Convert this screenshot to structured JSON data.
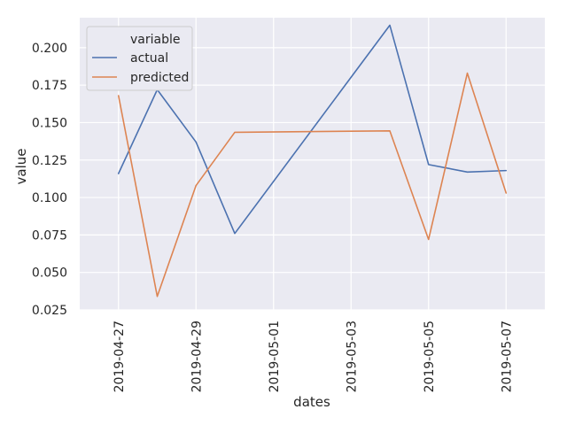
{
  "chart_data": {
    "type": "line",
    "title": "",
    "xlabel": "dates",
    "ylabel": "value",
    "x": [
      "2019-04-27",
      "2019-04-28",
      "2019-04-29",
      "2019-04-30",
      "2019-05-04",
      "2019-05-05",
      "2019-05-06",
      "2019-05-07"
    ],
    "xlim": [
      "2019-04-26",
      "2019-05-08"
    ],
    "xticks": [
      "2019-04-27",
      "2019-04-29",
      "2019-05-01",
      "2019-05-03",
      "2019-05-05",
      "2019-05-07"
    ],
    "ylim": [
      0.025,
      0.22
    ],
    "yticks": [
      "0.025",
      "0.050",
      "0.075",
      "0.100",
      "0.125",
      "0.150",
      "0.175",
      "0.200"
    ],
    "series": [
      {
        "name": "actual",
        "color": "#4c72b0",
        "values": [
          0.116,
          0.172,
          0.137,
          0.076,
          0.215,
          0.122,
          0.117,
          0.118
        ]
      },
      {
        "name": "predicted",
        "color": "#dd8452",
        "values": [
          0.168,
          0.034,
          0.108,
          0.1435,
          0.1445,
          0.072,
          0.183,
          0.103
        ]
      }
    ],
    "legend": {
      "title": "variable",
      "placement": "top-left"
    },
    "grid": true,
    "background_color": "#eaeaf2"
  }
}
